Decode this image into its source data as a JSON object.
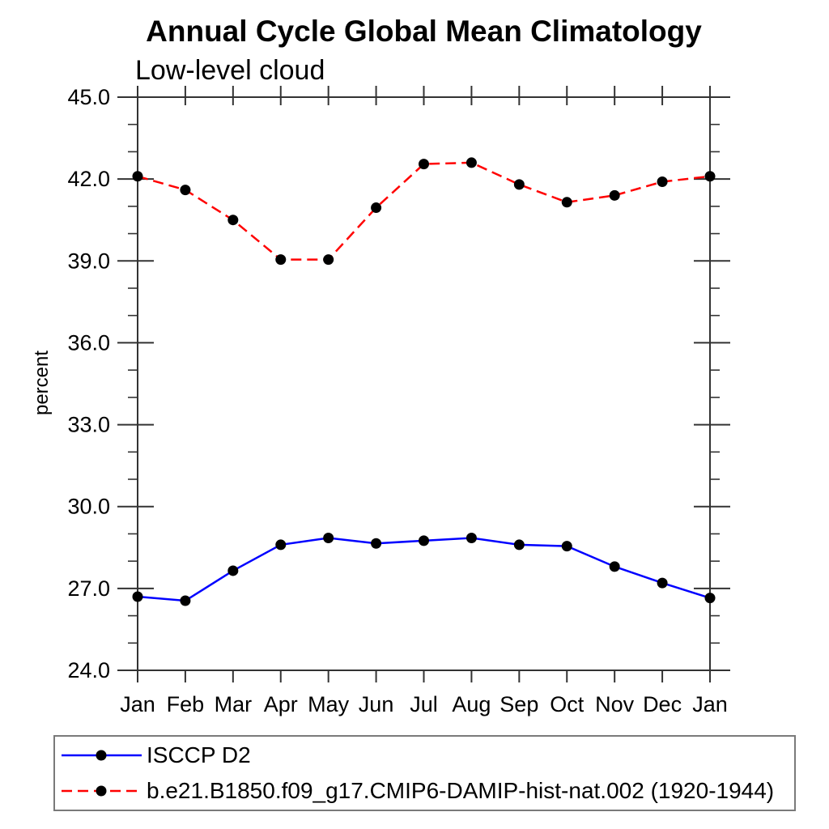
{
  "chart_data": {
    "type": "line",
    "title": "Annual Cycle Global Mean Climatology",
    "subtitle": "Low-level cloud",
    "ylabel": "percent",
    "xlabel": "",
    "x_categories": [
      "Jan",
      "Feb",
      "Mar",
      "Apr",
      "May",
      "Jun",
      "Jul",
      "Aug",
      "Sep",
      "Oct",
      "Nov",
      "Dec",
      "Jan"
    ],
    "ylim": [
      24.0,
      45.0
    ],
    "ytick_major_interval": 3.0,
    "ytick_minor_interval": 1.0,
    "ytick_labels": [
      "24.0",
      "27.0",
      "30.0",
      "33.0",
      "36.0",
      "39.0",
      "42.0",
      "45.0"
    ],
    "grid": false,
    "legend_position": "bottom-left",
    "axis_color": "#333333",
    "marker_shape": "filled-circle",
    "series": [
      {
        "name": "ISCCP D2",
        "color": "#0000ff",
        "line_style": "solid",
        "marker_color": "#000000",
        "values": [
          26.7,
          26.55,
          27.65,
          28.6,
          28.85,
          28.65,
          28.75,
          28.85,
          28.6,
          28.55,
          27.8,
          27.2,
          26.65
        ]
      },
      {
        "name": "b.e21.B1850.f09_g17.CMIP6-DAMIP-hist-nat.002 (1920-1944)",
        "color": "#ff0000",
        "line_style": "dashed",
        "marker_color": "#000000",
        "values": [
          42.1,
          41.6,
          40.5,
          39.05,
          39.05,
          40.95,
          42.55,
          42.6,
          41.8,
          41.15,
          41.4,
          41.9,
          42.1
        ]
      }
    ]
  }
}
